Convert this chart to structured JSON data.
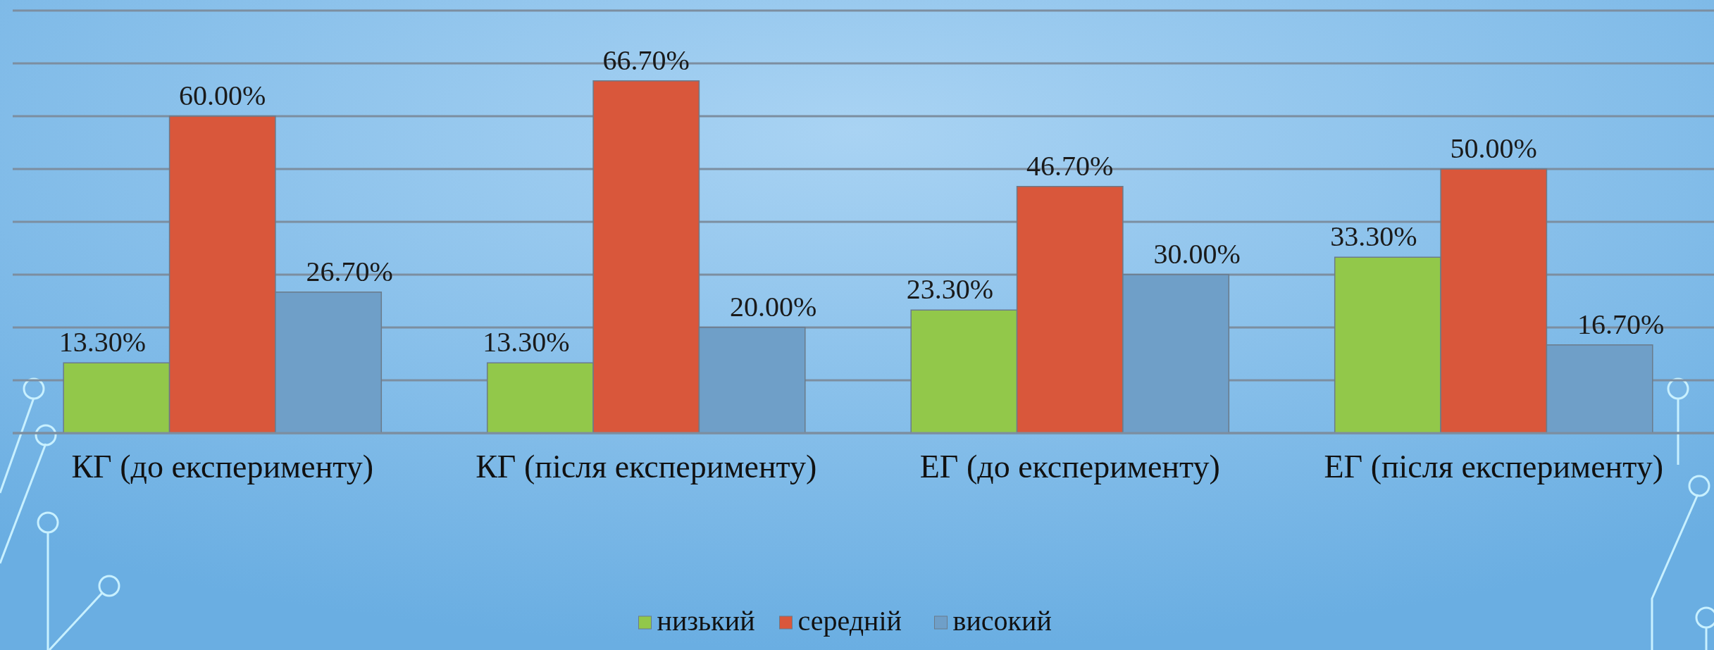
{
  "chart_data": {
    "type": "bar",
    "categories": [
      "КГ (до експерименту)",
      "КГ (після експерименту)",
      "ЕГ (до експерименту)",
      "ЕГ (після експерименту)"
    ],
    "series": [
      {
        "name": "низький",
        "color": "#92c84a",
        "values": [
          13.3,
          13.3,
          23.3,
          33.3
        ],
        "value_labels": [
          "13.30%",
          "13.30%",
          "23.30%",
          "33.30%"
        ]
      },
      {
        "name": "середній",
        "color": "#d9573b",
        "values": [
          60,
          66.7,
          46.7,
          50
        ],
        "value_labels": [
          "60.00%",
          "66.70%",
          "46.70%",
          "50.00%"
        ]
      },
      {
        "name": "високий",
        "color": "#6f9fc8",
        "values": [
          26.7,
          20,
          30,
          16.7
        ],
        "value_labels": [
          "26.70%",
          "20.00%",
          "30.00%",
          "16.70%"
        ]
      }
    ],
    "ylim": [
      0,
      80
    ],
    "yticks": [
      {
        "value": 0,
        "label": null
      },
      {
        "value": 10,
        "label": null
      },
      {
        "value": 20,
        "label": null
      },
      {
        "value": 30,
        "label": null
      },
      {
        "value": 40,
        "label": null
      },
      {
        "value": 50,
        "label": null
      },
      {
        "value": 60,
        "label": null
      },
      {
        "value": 70,
        "label": null
      },
      {
        "value": 80,
        "label": null
      }
    ],
    "tick_labels": "x",
    "grid": "y",
    "legend": "bottom"
  }
}
